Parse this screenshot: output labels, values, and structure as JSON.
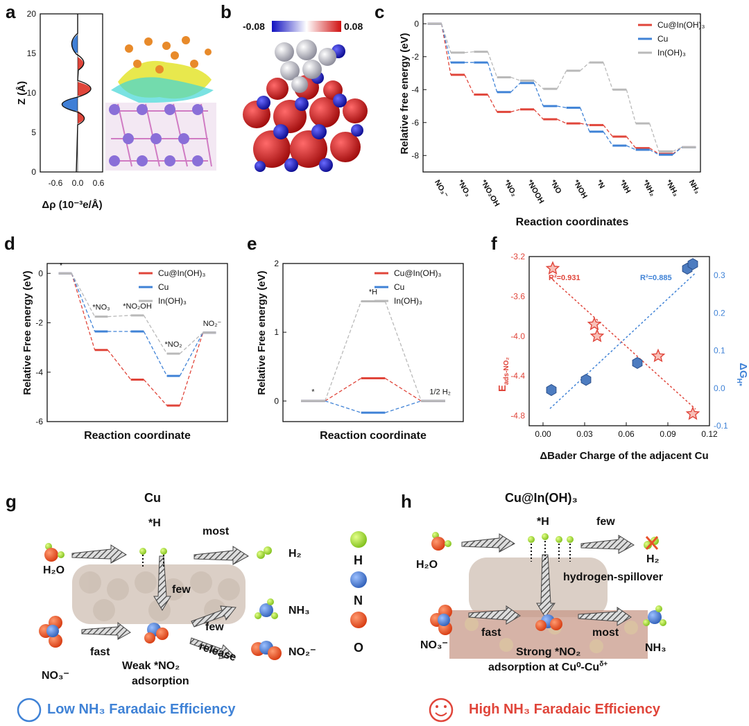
{
  "panels": {
    "a": "a",
    "b": "b",
    "c": "c",
    "d": "d",
    "e": "e",
    "f": "f",
    "g": "g",
    "h": "h"
  },
  "colors": {
    "cu_in": "#e0453a",
    "cu": "#3f82d6",
    "in": "#b9b9b9",
    "n": "#4a78c8",
    "o": "#e8502a",
    "h": "#a6d83a"
  },
  "panel_a": {
    "ylabel": "Z (Å)",
    "xlabel": "Δρ (10⁻³e/Å)",
    "yticks": [
      "0",
      "5",
      "10",
      "15",
      "20"
    ],
    "xticks": [
      "-0.6",
      "0.0",
      "0.6"
    ]
  },
  "panel_b": {
    "colorbar_min": "-0.08",
    "colorbar_max": "0.08"
  },
  "chart_data": [
    {
      "id": "c",
      "type": "line",
      "ylabel": "Relative free energy (eV)",
      "xlabel": "Reaction coordinates",
      "ylim": [
        -9,
        0.6
      ],
      "yticks": [
        "0",
        "-2",
        "-4",
        "-6",
        "-8"
      ],
      "categories": [
        "NO₃⁻",
        "*NO₃",
        "*NO₂OH",
        "*NO₂",
        "*NOOH",
        "*NO",
        "*NOH",
        "*N",
        "*NH",
        "*NH₂",
        "*NH₃",
        "NH₃"
      ],
      "series": [
        {
          "name": "Cu@In(OH)₃",
          "values": [
            0,
            -3.1,
            -4.3,
            -5.35,
            -5.2,
            -5.8,
            -6.05,
            -6.15,
            -6.85,
            -7.55,
            -7.9,
            -7.5
          ]
        },
        {
          "name": "Cu",
          "values": [
            0,
            -2.35,
            -2.35,
            -4.15,
            -3.6,
            -5.0,
            -5.1,
            -6.55,
            -7.4,
            -7.65,
            -7.95,
            -7.5
          ]
        },
        {
          "name": "In(OH)₃",
          "values": [
            0,
            -1.75,
            -1.7,
            -3.25,
            -3.45,
            -3.95,
            -2.85,
            -2.35,
            -4.0,
            -6.05,
            -7.75,
            -7.5
          ]
        }
      ]
    },
    {
      "id": "d",
      "type": "line",
      "ylabel": "Relative Free energy (eV)",
      "xlabel": "Reaction coordinate",
      "ylim": [
        -6,
        0.4
      ],
      "yticks": [
        "0",
        "-2",
        "-4",
        "-6"
      ],
      "categories": [
        "*",
        "*NO₃",
        "*NO₂OH",
        "*NO₂",
        "NO₂⁻"
      ],
      "series": [
        {
          "name": "Cu@In(OH)₃",
          "values": [
            0,
            -3.1,
            -4.3,
            -5.35,
            -2.4
          ]
        },
        {
          "name": "Cu",
          "values": [
            0,
            -2.35,
            -2.35,
            -4.15,
            -2.4
          ]
        },
        {
          "name": "In(OH)₃",
          "values": [
            0,
            -1.75,
            -1.7,
            -3.25,
            -2.4
          ]
        }
      ]
    },
    {
      "id": "e",
      "type": "line",
      "ylabel": "Relative Free energy (eV)",
      "xlabel": "Reaction coordinate",
      "ylim": [
        -0.3,
        2
      ],
      "yticks": [
        "0",
        "1",
        "2"
      ],
      "categories": [
        "*",
        "*H",
        "1/2 H₂"
      ],
      "series": [
        {
          "name": "Cu@In(OH)₃",
          "values": [
            0,
            0.33,
            0
          ]
        },
        {
          "name": "Cu",
          "values": [
            0,
            -0.17,
            0
          ]
        },
        {
          "name": "In(OH)₃",
          "values": [
            0,
            1.45,
            0
          ]
        }
      ]
    },
    {
      "id": "f",
      "type": "scatter",
      "xlabel": "ΔBader Charge of the adjacent Cu",
      "ylabel_left": "E",
      "ylabel_left_sub": "ads-NO₂",
      "ylabel_right": "ΔG",
      "ylabel_right_sub": "H*",
      "xlim": [
        -0.01,
        0.12
      ],
      "ylim_left": [
        -4.9,
        -3.2
      ],
      "ylim_right": [
        -0.1,
        0.35
      ],
      "xticks": [
        "0.00",
        "0.03",
        "0.06",
        "0.09",
        "0.12"
      ],
      "yticks_left": [
        "-3.2",
        "-3.6",
        "-4.0",
        "-4.4",
        "-4.8"
      ],
      "yticks_right": [
        "-0.1",
        "0.0",
        "0.1",
        "0.2",
        "0.3"
      ],
      "series": [
        {
          "name": "E_ads-NO₂",
          "r2": "R²=0.931",
          "points": [
            [
              0.007,
              -3.32
            ],
            [
              0.037,
              -3.88
            ],
            [
              0.039,
              -4.0
            ],
            [
              0.083,
              -4.2
            ],
            [
              0.108,
              -4.78
            ]
          ]
        },
        {
          "name": "ΔG_H*",
          "r2": "R²=0.885",
          "points": [
            [
              0.006,
              -0.005
            ],
            [
              0.031,
              0.022
            ],
            [
              0.068,
              0.067
            ],
            [
              0.104,
              0.318
            ],
            [
              0.108,
              0.33
            ]
          ]
        }
      ]
    }
  ],
  "panel_g": {
    "title": "Cu",
    "h": "*H",
    "most": "most",
    "h2": "H₂",
    "h2o": "H₂O",
    "few1": "few",
    "nh3": "NH₃",
    "few2": "few",
    "release": "release",
    "fast": "fast",
    "no2m": "NO₂⁻",
    "no3m": "NO₃⁻",
    "weak": "Weak *NO₂",
    "adsorption": "adsorption"
  },
  "legend_atoms": {
    "h": "H",
    "n": "N",
    "o": "O"
  },
  "panel_h": {
    "title": "Cu@In(OH)₃",
    "h": "*H",
    "few": "few",
    "h2": "H₂",
    "h2o": "H₂O",
    "spill": "hydrogen-spillover",
    "fast": "fast",
    "most": "most",
    "no3m": "NO₃⁻",
    "nh3": "NH₃",
    "strong": "Strong *NO₂",
    "adsorption": "adsorption at Cu⁰-Cu",
    "delta": "δ+"
  },
  "bottom": {
    "low": "Low NH₃ Faradaic Efficiency",
    "high": "High NH₃ Faradaic Efficiency"
  }
}
